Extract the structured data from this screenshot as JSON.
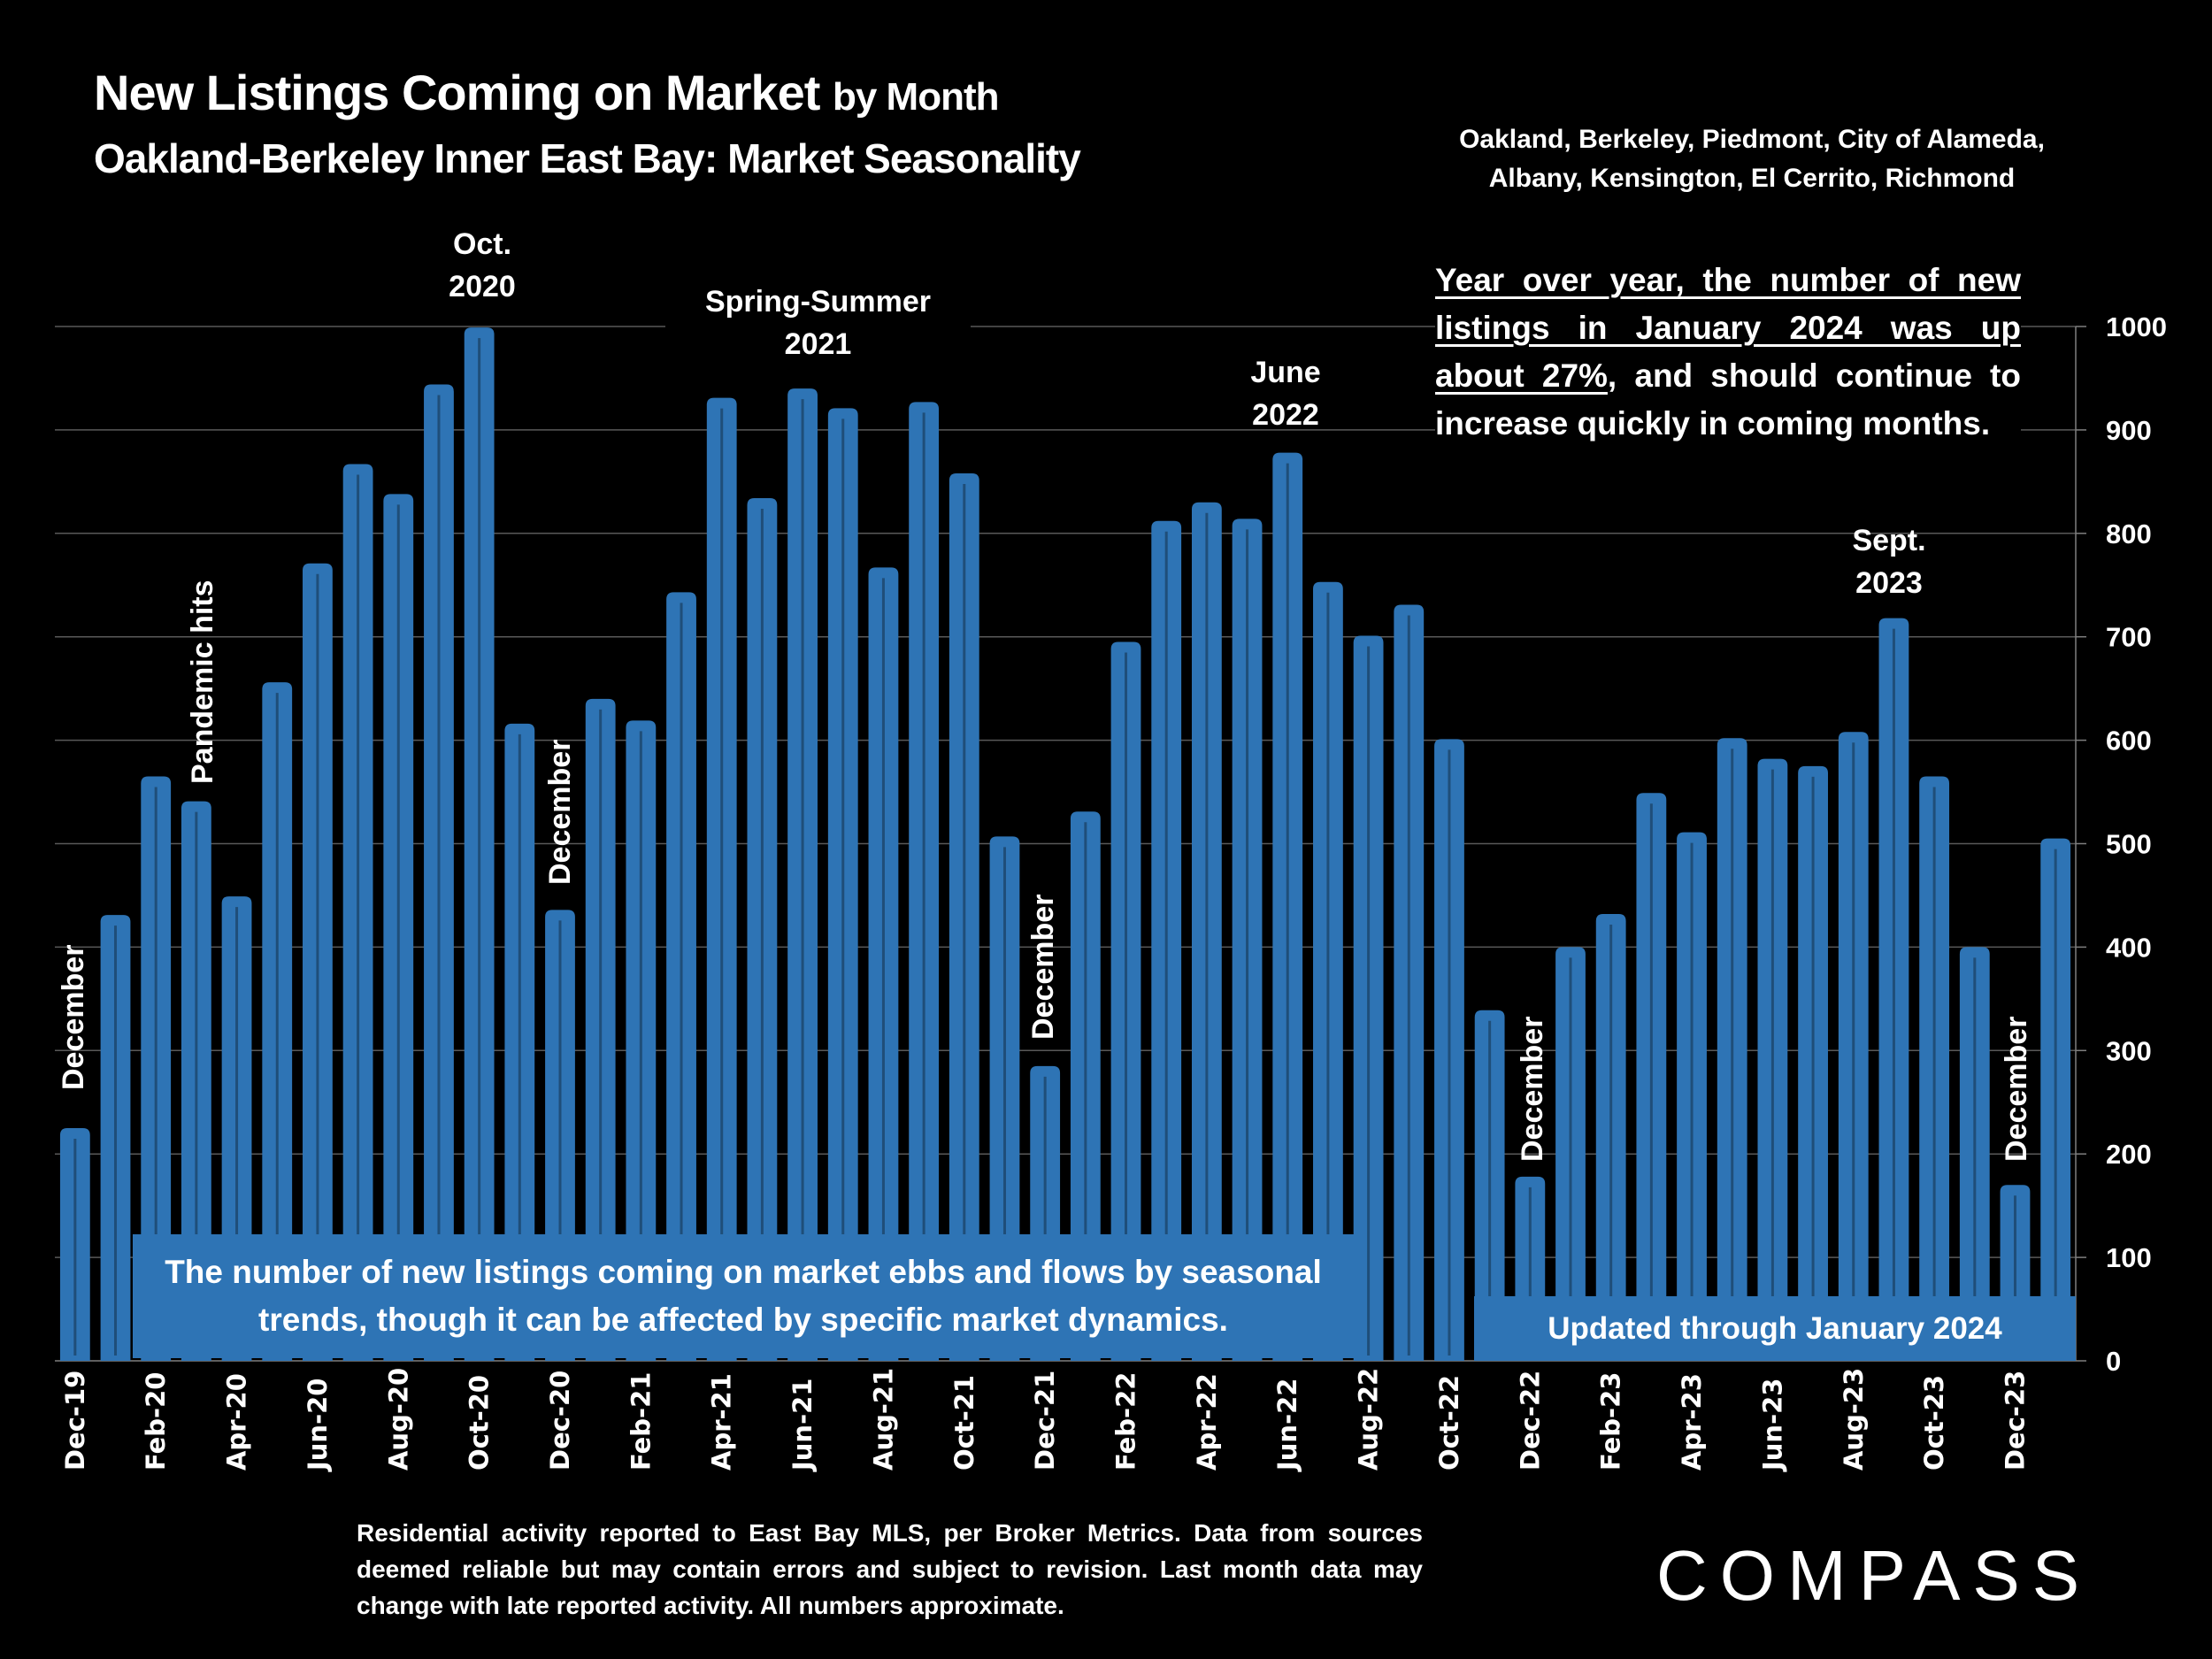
{
  "header": {
    "title_main": "New Listings Coming on Market",
    "title_suffix": "by Month",
    "subtitle": "Oakland-Berkeley Inner East Bay: Market Seasonality",
    "areas_line1": "Oakland, Berkeley, Piedmont, City of Alameda,",
    "areas_line2": "Albany, Kensington, El Cerrito, Richmond"
  },
  "callout": {
    "underlined": "Year over year, the number of new listings in January 2024 was up about 27%",
    "rest": ", and should continue to increase quickly in coming months."
  },
  "annotations": {
    "oct2020_line1": "Oct.",
    "oct2020_line2": "2020",
    "spring2021_line1": "Spring-Summer",
    "spring2021_line2": "2021",
    "june2022_line1": "June",
    "june2022_line2": "2022",
    "sept2023_line1": "Sept.",
    "sept2023_line2": "2023",
    "pandemic": "Pandemic hits",
    "december": "December"
  },
  "boxes": {
    "seasonal": "The number of new listings coming on market ebbs and flows by seasonal trends, though it can be affected by specific market dynamics.",
    "updated": "Updated through January 2024"
  },
  "footer": {
    "note": "Residential activity reported to East Bay MLS, per Broker Metrics. Data from sources deemed reliable but may contain errors and subject to revision. Last month data may change with late reported activity. All numbers approximate.",
    "brand": "COMPASS"
  },
  "colors": {
    "bar": "#2E74B5",
    "bar_line": "#1F4E79",
    "grid": "#595959",
    "background": "#000000",
    "text": "#FFFFFF"
  },
  "chart_data": {
    "type": "bar",
    "title": "New Listings Coming on Market by Month",
    "xlabel": "",
    "ylabel": "",
    "ylim": [
      0,
      1000
    ],
    "yticks": [
      0,
      100,
      200,
      300,
      400,
      500,
      600,
      700,
      800,
      900,
      1000
    ],
    "y_axis_side": "right",
    "grid": true,
    "categories": [
      "Dec-19",
      "Jan-20",
      "Feb-20",
      "Mar-20",
      "Apr-20",
      "May-20",
      "Jun-20",
      "Jul-20",
      "Aug-20",
      "Sep-20",
      "Oct-20",
      "Nov-20",
      "Dec-20",
      "Jan-21",
      "Feb-21",
      "Mar-21",
      "Apr-21",
      "May-21",
      "Jun-21",
      "Jul-21",
      "Aug-21",
      "Sep-21",
      "Oct-21",
      "Nov-21",
      "Dec-21",
      "Jan-22",
      "Feb-22",
      "Mar-22",
      "Apr-22",
      "May-22",
      "Jun-22",
      "Jul-22",
      "Aug-22",
      "Sep-22",
      "Oct-22",
      "Nov-22",
      "Dec-22",
      "Jan-23",
      "Feb-23",
      "Mar-23",
      "Apr-23",
      "May-23",
      "Jun-23",
      "Jul-23",
      "Aug-23",
      "Sep-23",
      "Oct-23",
      "Nov-23",
      "Dec-23",
      "Jan-24"
    ],
    "tick_labels_shown": [
      "Dec-19",
      "Feb-20",
      "Apr-20",
      "Jun-20",
      "Aug-20",
      "Oct-20",
      "Dec-20",
      "Feb-21",
      "Apr-21",
      "Jun-21",
      "Aug-21",
      "Oct-21",
      "Dec-21",
      "Feb-22",
      "Apr-22",
      "Jun-22",
      "Aug-22",
      "Oct-22",
      "Dec-22",
      "Feb-23",
      "Apr-23",
      "Jun-23",
      "Aug-23",
      "Oct-23",
      "Dec-23"
    ],
    "values": [
      225,
      431,
      565,
      541,
      449,
      656,
      771,
      867,
      838,
      944,
      999,
      616,
      436,
      640,
      619,
      743,
      931,
      834,
      940,
      921,
      767,
      927,
      858,
      507,
      285,
      531,
      695,
      812,
      830,
      814,
      878,
      753,
      701,
      731,
      601,
      339,
      178,
      400,
      432,
      549,
      511,
      602,
      582,
      575,
      608,
      718,
      565,
      400,
      170,
      505
    ]
  }
}
